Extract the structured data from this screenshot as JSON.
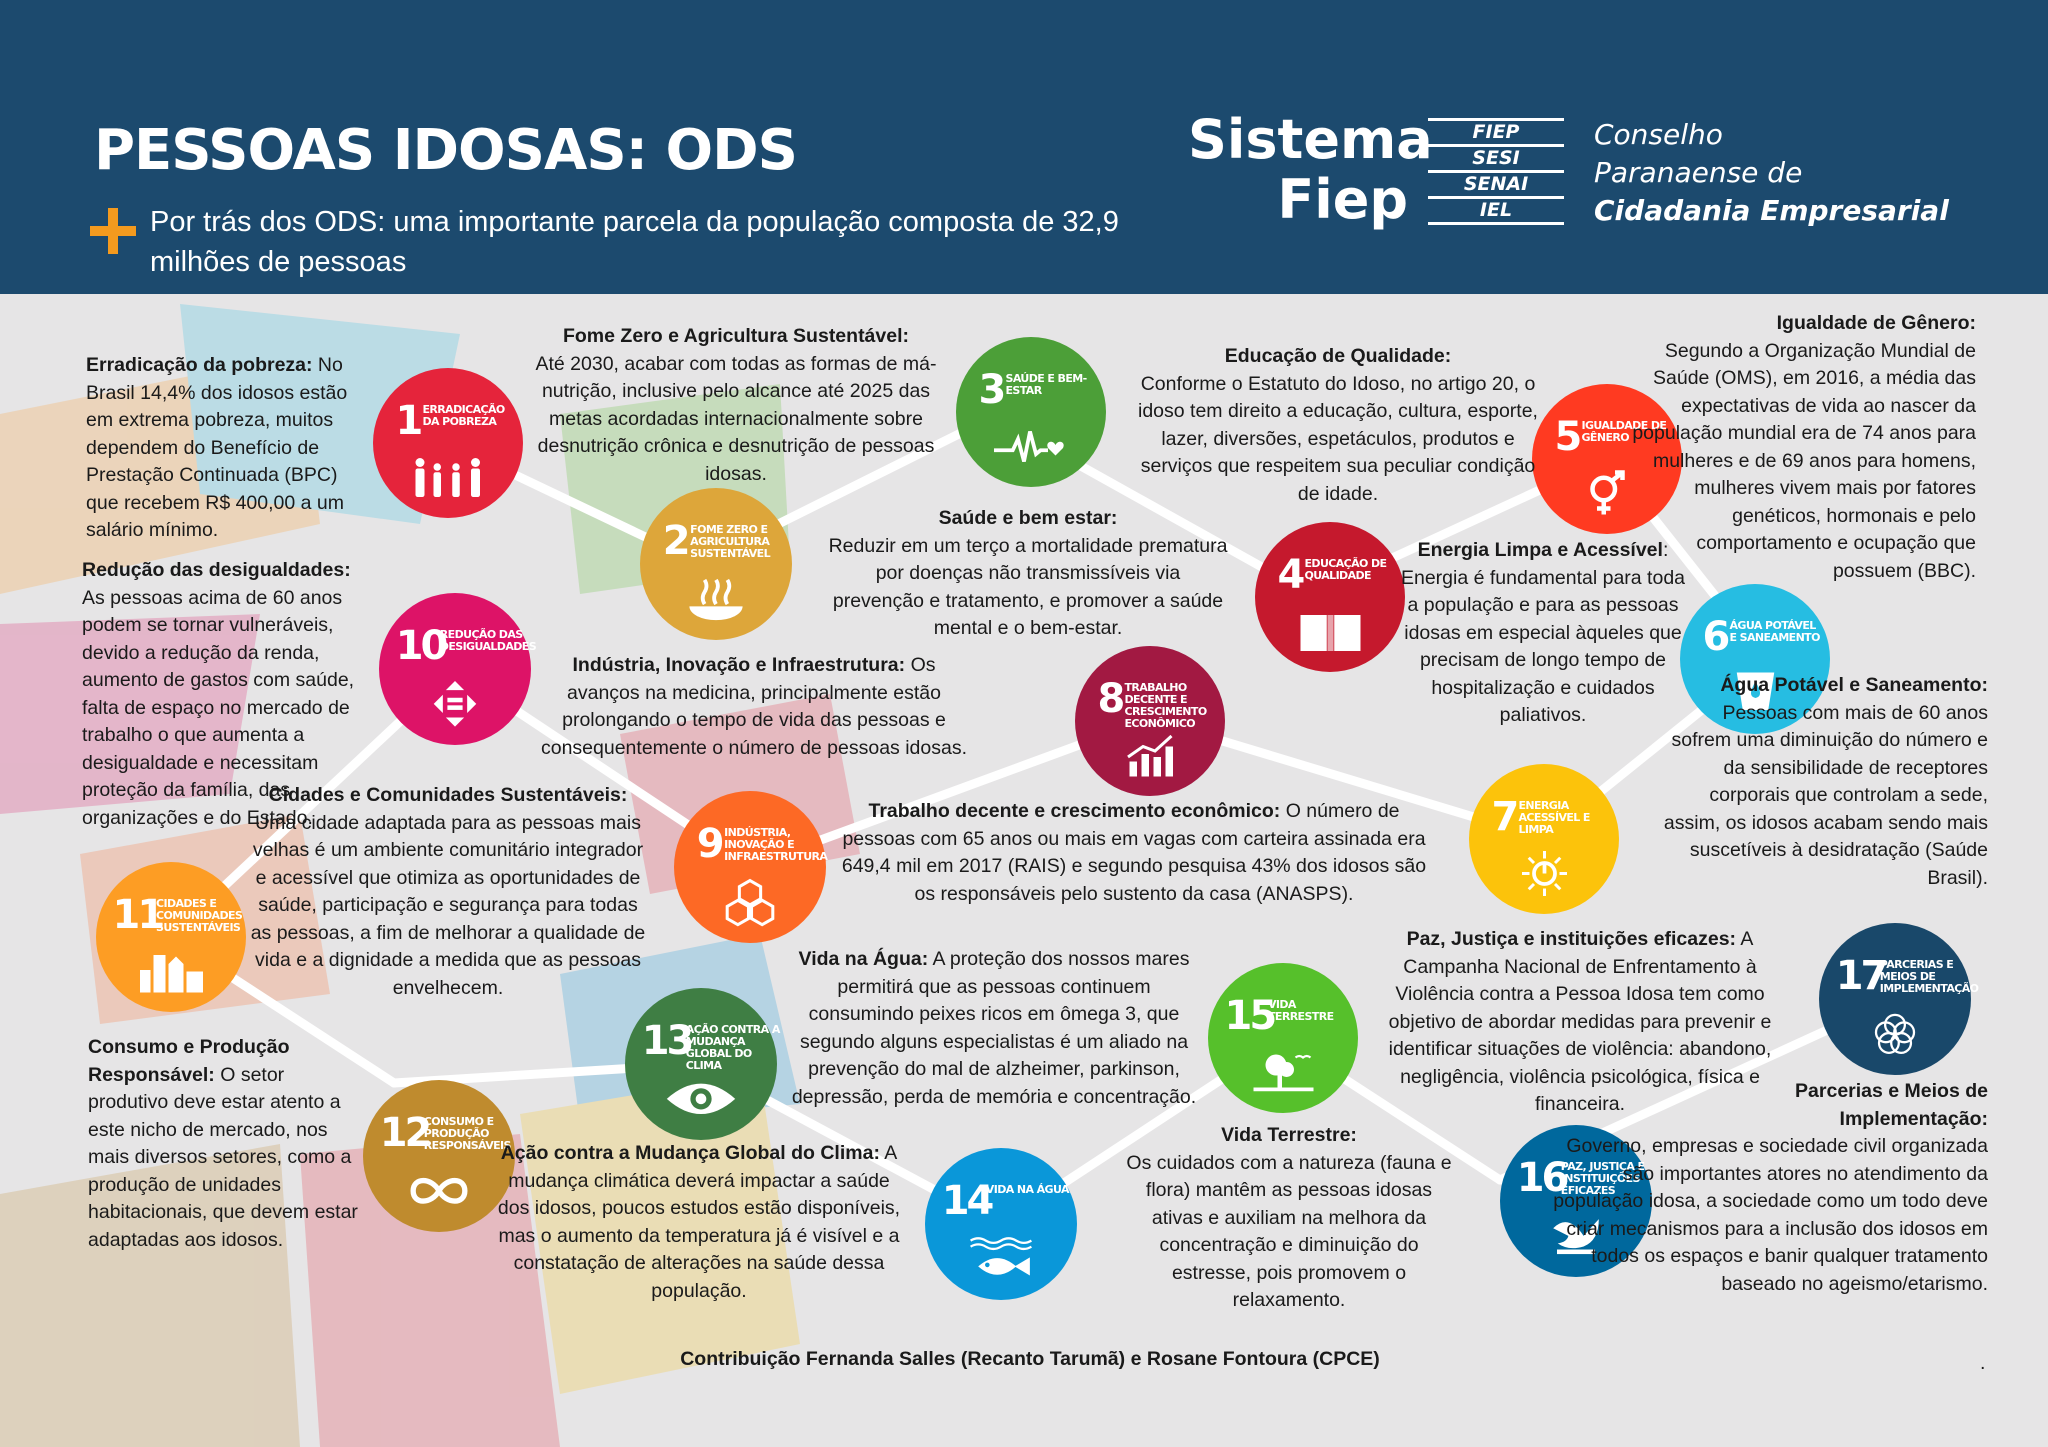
{
  "header": {
    "title": "PESSOAS IDOSAS: ODS",
    "subtitle": "Por trás dos ODS: uma importante parcela da população composta de 32,9 milhões de pessoas",
    "plus_icon": "plus-icon",
    "logo_main_1": "Sistema",
    "logo_main_2": "Fiep",
    "logo_entities": [
      "FIEP",
      "SESI",
      "SENAI",
      "IEL"
    ],
    "logo_org_1": "Conselho",
    "logo_org_2": "Paranaense de",
    "logo_org_3": "Cidadania Empresarial",
    "colors": {
      "band": "#1c4a6e",
      "accent": "#f39a1e"
    }
  },
  "goals": [
    {
      "id": "ods-1",
      "number": "1",
      "label": "ERRADICAÇÃO DA POBREZA",
      "color": "#e5243b",
      "icon": "family-icon"
    },
    {
      "id": "ods-2",
      "number": "2",
      "label": "FOME ZERO E AGRICULTURA SUSTENTÁVEL",
      "color": "#dda63a",
      "icon": "bowl-icon"
    },
    {
      "id": "ods-3",
      "number": "3",
      "label": "SAÚDE E BEM-ESTAR",
      "color": "#4c9f38",
      "icon": "heartbeat-icon"
    },
    {
      "id": "ods-4",
      "number": "4",
      "label": "EDUCAÇÃO DE QUALIDADE",
      "color": "#c5192d",
      "icon": "book-icon"
    },
    {
      "id": "ods-5",
      "number": "5",
      "label": "IGUALDADE DE GÊNERO",
      "color": "#ff3a21",
      "icon": "gender-icon"
    },
    {
      "id": "ods-6",
      "number": "6",
      "label": "ÁGUA POTÁVEL E SANEAMENTO",
      "color": "#26bde2",
      "icon": "water-icon"
    },
    {
      "id": "ods-7",
      "number": "7",
      "label": "ENERGIA ACESSÍVEL E LIMPA",
      "color": "#fcc30b",
      "icon": "sun-power-icon"
    },
    {
      "id": "ods-8",
      "number": "8",
      "label": "TRABALHO DECENTE E CRESCIMENTO ECONÔMICO",
      "color": "#a21942",
      "icon": "growth-chart-icon"
    },
    {
      "id": "ods-9",
      "number": "9",
      "label": "INDÚSTRIA, INOVAÇÃO E INFRAESTRUTURA",
      "color": "#fd6925",
      "icon": "cubes-icon"
    },
    {
      "id": "ods-10",
      "number": "10",
      "label": "REDUÇÃO DAS DESIGUALDADES",
      "color": "#dd1367",
      "icon": "equality-icon"
    },
    {
      "id": "ods-11",
      "number": "11",
      "label": "CIDADES E COMUNIDADES SUSTENTÁVEIS",
      "color": "#fd9d24",
      "icon": "buildings-icon"
    },
    {
      "id": "ods-12",
      "number": "12",
      "label": "CONSUMO E PRODUÇÃO RESPONSÁVEIS",
      "color": "#bf8b2e",
      "icon": "infinity-icon"
    },
    {
      "id": "ods-13",
      "number": "13",
      "label": "AÇÃO CONTRA A MUDANÇA GLOBAL DO CLIMA",
      "color": "#3f7e44",
      "icon": "eye-globe-icon"
    },
    {
      "id": "ods-14",
      "number": "14",
      "label": "VIDA NA ÁGUA",
      "color": "#0a97d9",
      "icon": "fish-icon"
    },
    {
      "id": "ods-15",
      "number": "15",
      "label": "VIDA TERRESTRE",
      "color": "#56c02b",
      "icon": "tree-icon"
    },
    {
      "id": "ods-16",
      "number": "16",
      "label": "PAZ, JUSTIÇA E INSTITUIÇÕES EFICAZES",
      "color": "#00689d",
      "icon": "dove-icon"
    },
    {
      "id": "ods-17",
      "number": "17",
      "label": "PARCERIAS E MEIOS DE IMPLEMENTAÇÃO",
      "color": "#19486a",
      "icon": "rings-icon"
    }
  ],
  "texts": {
    "t1": {
      "title": "Erradicação da pobreza:",
      "body": " No Brasil 14,4% dos idosos estão em extrema pobreza, muitos dependem do Benefício de Prestação Continuada (BPC) que recebem R$ 400,00 a um salário mínimo."
    },
    "t2": {
      "title": "Fome Zero e Agricultura Sustentável:",
      "body": "Até 2030, acabar com todas as formas de má-nutrição, inclusive pelo alcance até 2025 das metas acordadas internacionalmente sobre desnutrição crônica e desnutrição de pessoas idosas."
    },
    "t3": {
      "title": "Saúde e bem estar:",
      "body": "Reduzir em um terço a mortalidade prematura por doenças não transmissíveis via prevenção e tratamento, e promover a saúde mental e o bem-estar."
    },
    "t4": {
      "title": "Educação de Qualidade:",
      "body": "Conforme o Estatuto do Idoso, no artigo 20, o idoso tem direito a educação, cultura, esporte, lazer, diversões, espetáculos, produtos e serviços que respeitem sua peculiar condição de idade."
    },
    "t5": {
      "title": "Igualdade de Gênero:",
      "body": "Segundo a Organização Mundial de Saúde (OMS), em 2016, a média das expectativas de vida ao nascer da população mundial era de 74 anos para mulheres e de 69 anos para homens, mulheres vivem mais por fatores genéticos, hormonais e pelo comportamento e ocupação que possuem (BBC)."
    },
    "t6": {
      "title": "Água Potável e Saneamento:",
      "body": "Pessoas com mais de 60 anos sofrem uma diminuição do número e da sensibilidade de receptores corporais que controlam a sede, assim, os idosos acabam sendo mais suscetíveis à desidratação (Saúde Brasil)."
    },
    "t7": {
      "title": "Energia Limpa e Acessível",
      "body": ": Energia é fundamental para toda a população e para as pessoas idosas em especial àqueles que precisam de longo tempo de hospitalização e cuidados paliativos."
    },
    "t8": {
      "title": "Trabalho decente e crescimento econômico:",
      "body": " O número de pessoas com 65 anos ou mais em vagas com carteira assinada era 649,4 mil em 2017 (RAIS) e segundo pesquisa 43% dos idosos são os responsáveis pelo sustento da casa (ANASPS)."
    },
    "t9": {
      "title": "Indústria, Inovação e Infraestrutura:",
      "body": " Os avanços na medicina, principalmente estão prolongando o tempo de vida das pessoas e consequentemente o número de pessoas idosas."
    },
    "t10": {
      "title": "Redução das desigualdades:",
      "body": "As pessoas acima de 60 anos podem se tornar vulneráveis, devido a redução da renda, aumento de gastos com saúde, falta de espaço no mercado de trabalho o que aumenta a desigualdade e necessitam proteção da família, das organizações e do Estado."
    },
    "t11": {
      "title": "Cidades e Comunidades Sustentáveis:",
      "body": "Uma cidade adaptada para as pessoas mais velhas é um ambiente comunitário integrador e acessível que otimiza as oportunidades de saúde, participação e segurança para todas as pessoas, a fim de melhorar a qualidade de vida e a dignidade a medida que as pessoas envelhecem."
    },
    "t12": {
      "title": "Consumo e Produção Responsável:",
      "body": " O setor produtivo deve estar atento a este nicho de mercado, nos mais diversos setores, como a produção de unidades habitacionais, que devem estar adaptadas aos idosos."
    },
    "t13": {
      "title": "Ação contra a Mudança Global do Clima:",
      "body": " A mudança climática deverá impactar a saúde dos idosos, poucos estudos estão disponíveis, mas o aumento da temperatura já é visível e a constatação de alterações na saúde dessa população."
    },
    "t14": {
      "title": "Vida na Água:",
      "body": " A proteção dos nossos mares permitirá que as pessoas continuem consumindo peixes ricos em ômega 3, que segundo alguns especialistas é um aliado na prevenção do mal de alzheimer, parkinson, depressão, perda de memória e concentração."
    },
    "t15": {
      "title": "Vida Terrestre:",
      "body": "Os cuidados com a natureza (fauna e flora) mantêm as pessoas idosas ativas e auxiliam na melhora da concentração e diminuição do estresse, pois promovem o relaxamento."
    },
    "t16": {
      "title": "Paz, Justiça e instituições eficazes:",
      "body": " A Campanha Nacional de Enfrentamento à Violência contra a Pessoa Idosa tem como objetivo de abordar medidas para prevenir e identificar situações de violência: abandono, negligência, violência psicológica, física e financeira."
    },
    "t17": {
      "title": "Parcerias e Meios de Implementação:",
      "body": "Governo, empresas e sociedade civil organizada são importantes atores no atendimento da população idosa, a sociedade como um todo deve criar mecanismos para a inclusão dos idosos em todos os espaços e banir qualquer tratamento baseado no ageismo/etarismo."
    }
  },
  "footer": {
    "credit": "Contribuição Fernanda Salles (Recanto Tarumã) e Rosane Fontoura (CPCE)",
    "dot": "."
  }
}
